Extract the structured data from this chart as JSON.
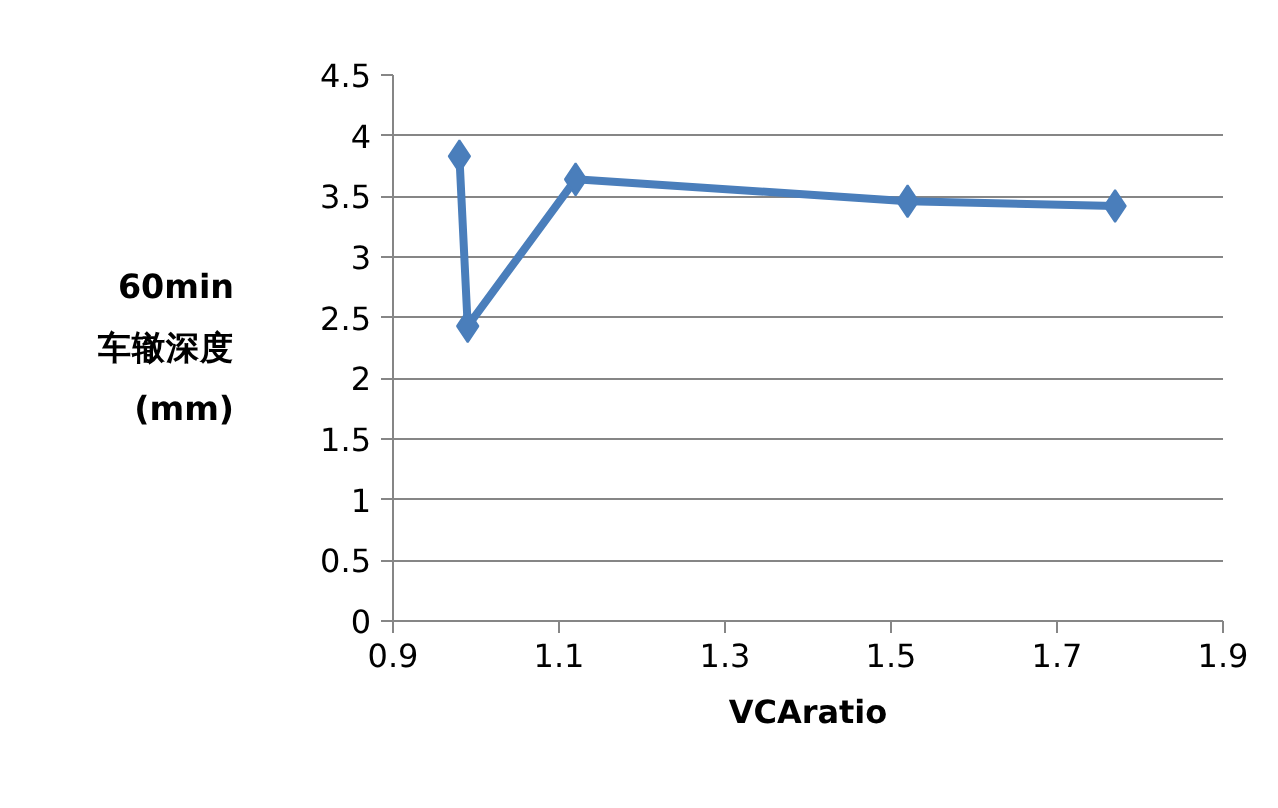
{
  "chart_data": {
    "type": "line",
    "xlabel": "VCAratio",
    "ylabel": "60min\n车辙深度\n(mm)",
    "x": [
      0.98,
      0.99,
      1.12,
      1.52,
      1.77
    ],
    "series": [
      {
        "color": "#4a7ebb",
        "values": [
          3.83,
          2.43,
          3.64,
          3.46,
          3.42
        ]
      }
    ],
    "xlim": [
      0.9,
      1.9
    ],
    "xticks": [
      0.9,
      1.1,
      1.3,
      1.5,
      1.7,
      1.9
    ],
    "ylim": [
      0,
      4.5
    ],
    "yticks": [
      0,
      0.5,
      1,
      1.5,
      2,
      2.5,
      3,
      3.5,
      4,
      4.5
    ],
    "grid": "y",
    "marker": "diamond",
    "line_style": "solid"
  }
}
